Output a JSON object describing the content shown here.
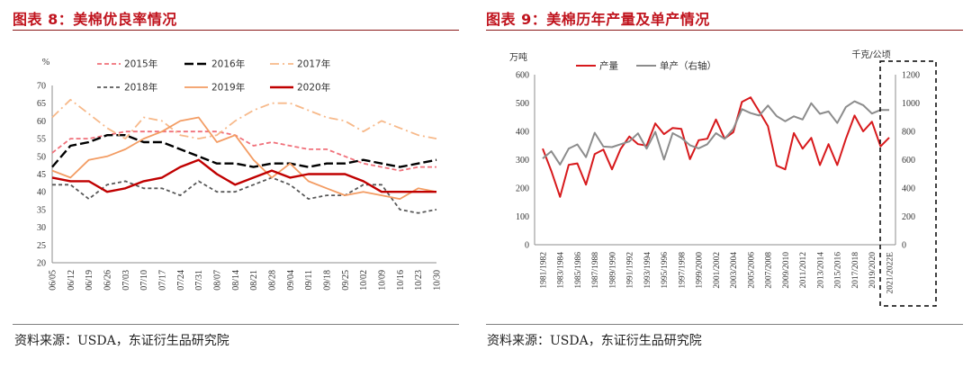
{
  "theme": {
    "title_color": "#c0141e",
    "rule_color": "#8b1a1a"
  },
  "chart_data": [
    {
      "type": "line",
      "title": "图表 8：美棉优良率情况",
      "ylabel": "%",
      "ylim": [
        20,
        70
      ],
      "yticks": [
        20,
        25,
        30,
        35,
        40,
        45,
        50,
        55,
        60,
        65,
        70
      ],
      "categories": [
        "06/05",
        "06/12",
        "06/19",
        "06/26",
        "07/03",
        "07/10",
        "07/17",
        "07/24",
        "07/31",
        "08/07",
        "08/14",
        "08/21",
        "08/28",
        "09/04",
        "09/11",
        "09/18",
        "09/25",
        "10/02",
        "10/09",
        "10/16",
        "10/23",
        "10/30"
      ],
      "grid": false,
      "legend": "top",
      "series": [
        {
          "name": "2015年",
          "color": "#f0707a",
          "values": [
            51,
            55,
            55,
            56,
            57,
            57,
            57,
            57,
            57,
            57,
            56,
            53,
            54,
            53,
            52,
            52,
            50,
            48,
            47,
            46,
            47,
            47
          ]
        },
        {
          "name": "2016年",
          "color": "#000000",
          "values": [
            47,
            53,
            54,
            56,
            56,
            54,
            54,
            52,
            50,
            48,
            48,
            47,
            48,
            48,
            47,
            48,
            48,
            49,
            48,
            47,
            48,
            49
          ]
        },
        {
          "name": "2017年",
          "color": "#f7b98a",
          "values": [
            61,
            66,
            62,
            58,
            55,
            61,
            60,
            56,
            55,
            56,
            60,
            63,
            65,
            65,
            63,
            61,
            60,
            57,
            60,
            58,
            56,
            55
          ]
        },
        {
          "name": "2018年",
          "color": "#595959",
          "values": [
            42,
            42,
            38,
            42,
            43,
            41,
            41,
            39,
            43,
            40,
            40,
            42,
            44,
            42,
            38,
            39,
            39,
            42,
            42,
            35,
            34,
            35
          ]
        },
        {
          "name": "2019年",
          "color": "#f39c63",
          "values": [
            46,
            44,
            49,
            50,
            52,
            55,
            57,
            60,
            61,
            54,
            56,
            49,
            44,
            48,
            43,
            41,
            39,
            40,
            39,
            38,
            41,
            40
          ]
        },
        {
          "name": "2020年",
          "color": "#c00000",
          "values": [
            44,
            43,
            43,
            40,
            41,
            43,
            44,
            47,
            49,
            45,
            42,
            44,
            46,
            44,
            45,
            45,
            45,
            43,
            40,
            40,
            40,
            40
          ]
        }
      ],
      "source": "资料来源：USDA，东证衍生品研究院"
    },
    {
      "type": "line",
      "title": "图表 9：美棉历年产量及单产情况",
      "ylabel": "万吨",
      "y2label": "千克/公顷",
      "ylim": [
        0,
        600
      ],
      "y2lim": [
        0,
        1200
      ],
      "yticks": [
        0,
        100,
        200,
        300,
        400,
        500,
        600
      ],
      "y2ticks": [
        0,
        200,
        400,
        600,
        800,
        1000,
        1200
      ],
      "x": [
        1981,
        1982,
        1983,
        1984,
        1985,
        1986,
        1987,
        1988,
        1989,
        1990,
        1991,
        1992,
        1993,
        1994,
        1995,
        1996,
        1997,
        1998,
        1999,
        2000,
        2001,
        2002,
        2003,
        2004,
        2005,
        2006,
        2007,
        2008,
        2009,
        2010,
        2011,
        2012,
        2013,
        2014,
        2015,
        2016,
        2017,
        2018,
        2019,
        2020,
        2021
      ],
      "xtick_labels": [
        "1981/1982",
        "1983/1984",
        "1985/1986",
        "1987/1988",
        "1989/1990",
        "1991/1992",
        "1993/1994",
        "1995/1996",
        "1997/1998",
        "1999/2000",
        "2001/2002",
        "2003/2004",
        "2005/2006",
        "2007/2008",
        "2009/2010",
        "2011/2012",
        "2013/2014",
        "2015/2016",
        "2017/2018",
        "2019/2020",
        "2021/2022E"
      ],
      "grid": false,
      "legend": "top-left",
      "series": [
        {
          "name": "产量",
          "right_axis": false,
          "color": "#d7191c",
          "values": [
            339,
            260,
            169,
            282,
            287,
            212,
            320,
            336,
            266,
            338,
            382,
            355,
            350,
            428,
            390,
            412,
            409,
            302,
            369,
            374,
            442,
            375,
            397,
            504,
            520,
            470,
            418,
            279,
            266,
            394,
            339,
            377,
            281,
            355,
            281,
            374,
            456,
            400,
            434,
            347,
            378
          ]
        },
        {
          "name": "单产（右轴）",
          "right_axis": true,
          "color": "#8c8c8c",
          "values": [
            608,
            660,
            566,
            678,
            708,
            618,
            790,
            693,
            689,
            709,
            729,
            786,
            678,
            797,
            601,
            787,
            755,
            702,
            680,
            709,
            787,
            747,
            818,
            957,
            929,
            912,
            982,
            908,
            871,
            906,
            884,
            999,
            924,
            940,
            859,
            972,
            1012,
            985,
            926,
            951,
            951
          ]
        }
      ],
      "source": "资料来源：USDA，东证衍生品研究院"
    }
  ]
}
